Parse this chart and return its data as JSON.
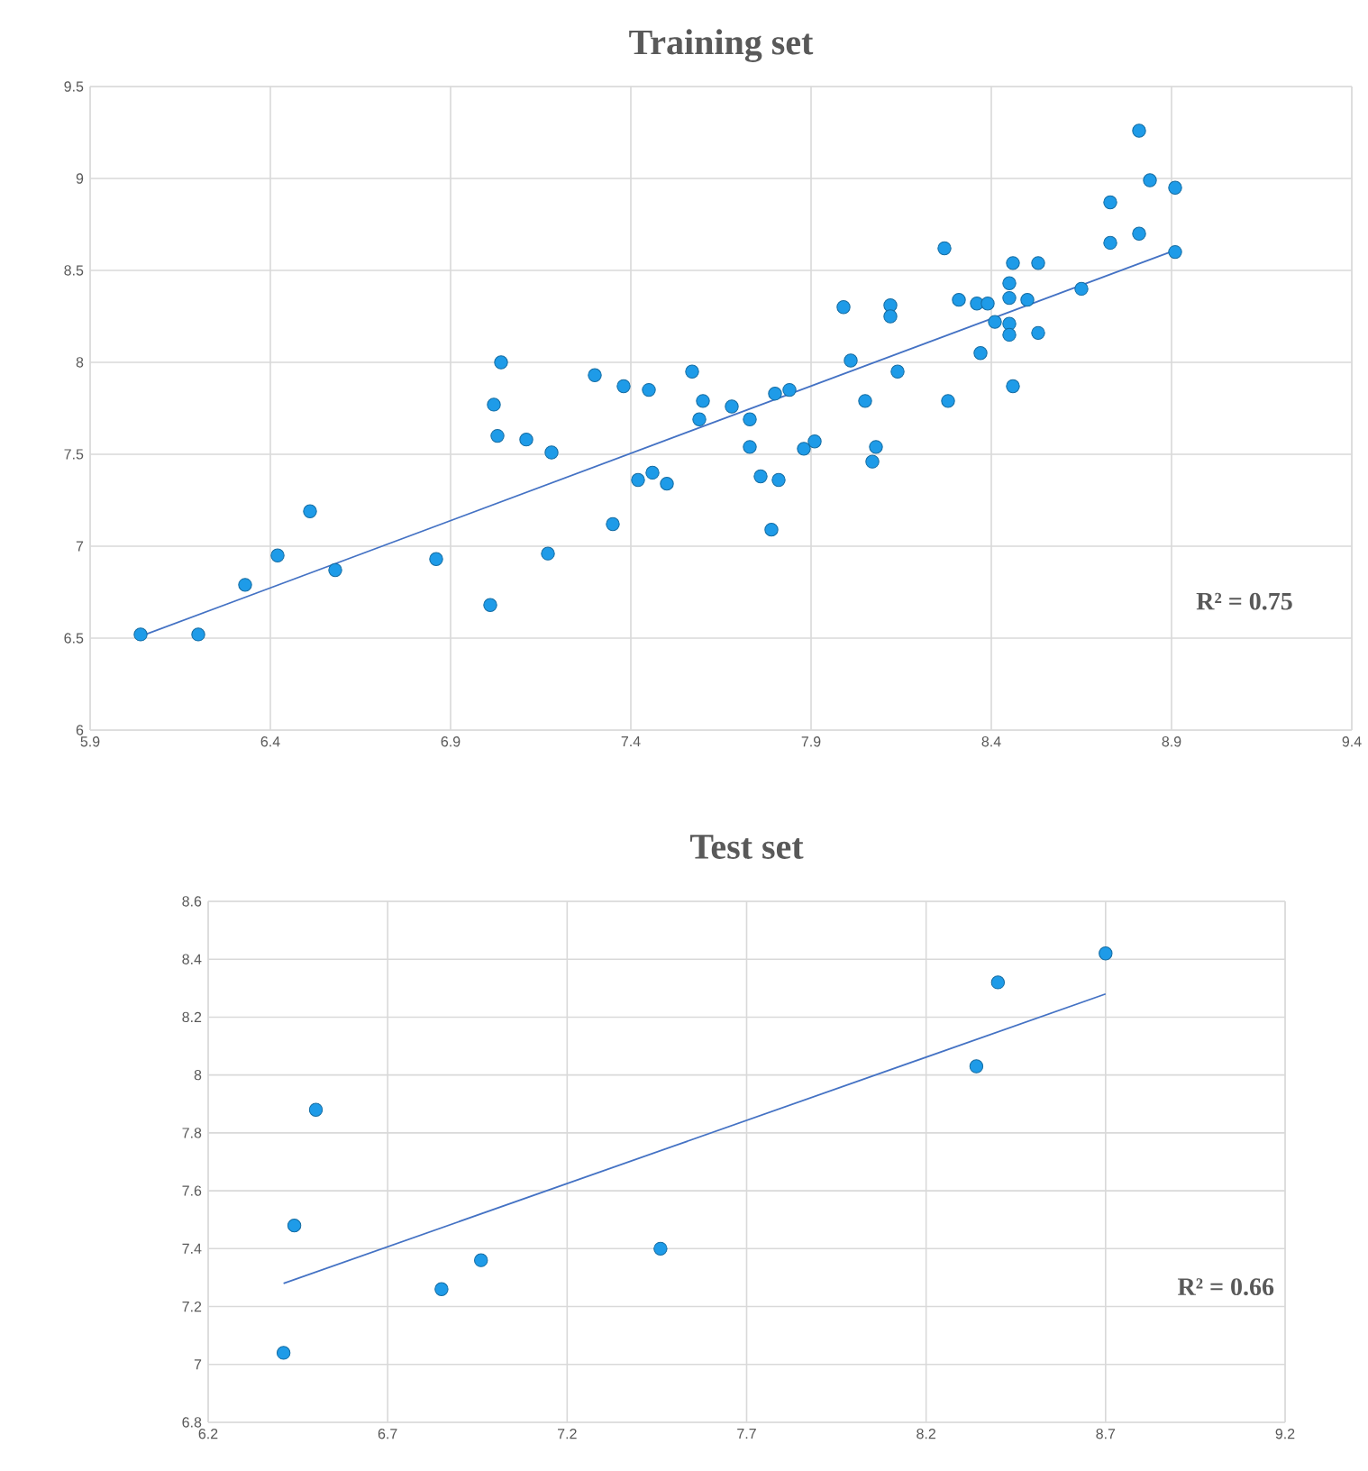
{
  "chart_data": [
    {
      "type": "scatter",
      "title": "Training set",
      "xlim": [
        5.9,
        9.4
      ],
      "ylim": [
        6,
        9.5
      ],
      "xticks": [
        5.9,
        6.4,
        6.9,
        7.4,
        7.9,
        8.4,
        8.9,
        9.4
      ],
      "yticks": [
        6,
        6.5,
        7,
        7.5,
        8,
        8.5,
        9,
        9.5
      ],
      "grid": true,
      "marker": "circle",
      "annotations": [
        "R² = 0.75"
      ],
      "series": [
        {
          "color": "#1e9be8",
          "x": [
            6.04,
            6.2,
            6.33,
            6.42,
            6.51,
            6.58,
            6.86,
            7.01,
            7.02,
            7.04,
            7.03,
            7.11,
            7.18,
            7.17,
            7.3,
            7.35,
            7.38,
            7.45,
            7.42,
            7.46,
            7.5,
            7.57,
            7.6,
            7.59,
            7.68,
            7.73,
            7.73,
            7.76,
            7.81,
            7.79,
            7.8,
            7.84,
            7.88,
            7.91,
            7.99,
            8.01,
            8.05,
            8.08,
            8.07,
            8.12,
            8.12,
            8.14,
            8.27,
            8.28,
            8.31,
            8.36,
            8.39,
            8.37,
            8.41,
            8.45,
            8.45,
            8.45,
            8.45,
            8.46,
            8.53,
            8.5,
            8.53,
            8.46,
            8.65,
            8.73,
            8.73,
            8.81,
            8.81,
            8.84,
            8.91,
            8.91
          ],
          "values": [
            6.52,
            6.52,
            6.79,
            6.95,
            7.19,
            6.87,
            6.93,
            6.68,
            7.77,
            8.0,
            7.6,
            7.58,
            7.51,
            6.96,
            7.93,
            7.12,
            7.87,
            7.85,
            7.36,
            7.4,
            7.34,
            7.95,
            7.79,
            7.69,
            7.76,
            7.69,
            7.54,
            7.38,
            7.36,
            7.09,
            7.83,
            7.85,
            7.53,
            7.57,
            8.3,
            8.01,
            7.79,
            7.54,
            7.46,
            8.31,
            8.25,
            7.95,
            8.62,
            7.79,
            8.34,
            8.32,
            8.32,
            8.05,
            8.22,
            8.21,
            8.15,
            8.35,
            8.43,
            8.54,
            8.54,
            8.34,
            8.16,
            7.87,
            8.4,
            8.87,
            8.65,
            8.7,
            9.26,
            8.99,
            8.95,
            8.6
          ]
        },
        {
          "type": "line",
          "color": "#4472c4",
          "marker": "none",
          "x": [
            6.04,
            8.91
          ],
          "values": [
            6.51,
            8.61
          ]
        }
      ]
    },
    {
      "type": "scatter",
      "title": "Test set",
      "xlim": [
        6.2,
        9.2
      ],
      "ylim": [
        6.8,
        8.6
      ],
      "xticks": [
        6.2,
        6.7,
        7.2,
        7.7,
        8.2,
        8.7,
        9.2
      ],
      "yticks": [
        6.8,
        7,
        7.2,
        7.4,
        7.6,
        7.8,
        8,
        8.2,
        8.4,
        8.6
      ],
      "grid": true,
      "marker": "circle",
      "annotations": [
        "R² = 0.66"
      ],
      "series": [
        {
          "color": "#1e9be8",
          "x": [
            6.41,
            6.44,
            6.5,
            6.85,
            6.96,
            7.46,
            8.34,
            8.4,
            8.7
          ],
          "values": [
            7.04,
            7.48,
            7.88,
            7.26,
            7.36,
            7.4,
            8.03,
            8.32,
            8.42
          ]
        },
        {
          "type": "line",
          "color": "#4472c4",
          "marker": "none",
          "x": [
            6.41,
            8.7
          ],
          "values": [
            7.28,
            8.28
          ]
        }
      ]
    }
  ]
}
